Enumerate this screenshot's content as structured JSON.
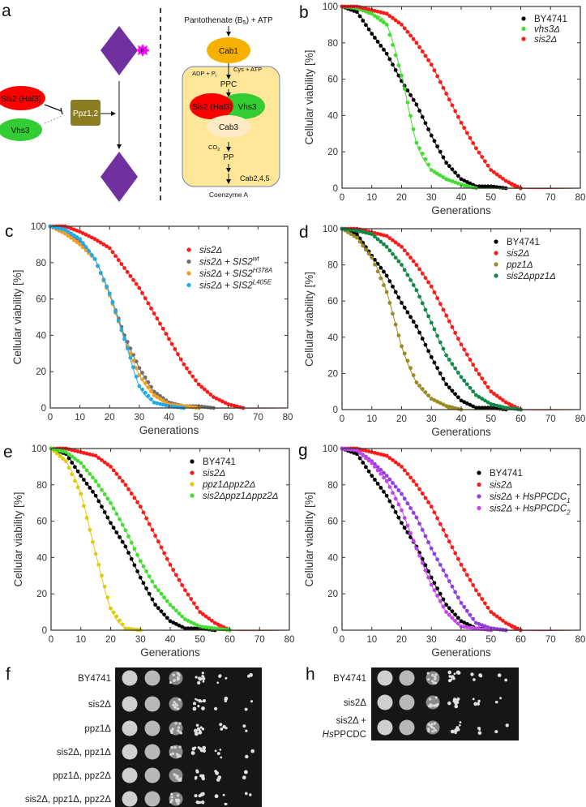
{
  "panel_labels": {
    "a": "a",
    "b": "b",
    "c": "c",
    "d": "d",
    "e": "e",
    "f": "f",
    "g": "g",
    "h": "h"
  },
  "diagram": {
    "left": {
      "sis2": "Sis2 (Hal3)",
      "vhs3": "Vhs3",
      "ppz": "Ppz1,2",
      "phospho": "P"
    },
    "right": {
      "pantothenate": "Pantothenate (B",
      "pantothenate_sub": "5",
      "pantothenate_end": ") + ATP",
      "cab1": "Cab1",
      "cys": "Cys + ATP",
      "adp": "ADP + P",
      "adp_sub": "i",
      "ppc": "PPC",
      "sis2": "Sis2 (Hal3)",
      "vhs3": "Vhs3",
      "cab3": "Cab3",
      "co2": "CO",
      "co2_sub": "2",
      "pp": "PP",
      "cab245": "Cab2,4,5",
      "coa": "Coenzyme A"
    },
    "colors": {
      "sis2": "#ff0000",
      "vhs3": "#33cc33",
      "ppz": "#8b7d22",
      "diamond": "#7030a0",
      "phospho": "#ff00ff",
      "cab1": "#f5b000",
      "box": "#ffe699",
      "cab3": "#fdebc6"
    }
  },
  "chart_data": [
    {
      "panel": "b",
      "type": "line",
      "xlabel": "Generations",
      "ylabel": "Cellular viability [%]",
      "xlim": [
        0,
        80
      ],
      "ylim": [
        0,
        100
      ],
      "xticks": [
        0,
        10,
        20,
        30,
        40,
        50,
        60,
        70,
        80
      ],
      "yticks": [
        0,
        20,
        40,
        60,
        80,
        100
      ],
      "legend": "top-right",
      "grid": false,
      "series": [
        {
          "name": "BY4741",
          "italic": false,
          "color": "#000000",
          "x": [
            0,
            5,
            10,
            15,
            20,
            25,
            30,
            35,
            40,
            45,
            50,
            55
          ],
          "y": [
            100,
            97,
            85,
            74,
            59,
            46,
            29,
            14,
            5,
            1,
            1,
            0
          ]
        },
        {
          "name": "vhs3Δ",
          "italic": true,
          "color": "#44dd33",
          "x": [
            0,
            5,
            10,
            15,
            20,
            25,
            30,
            35,
            40,
            45
          ],
          "y": [
            100,
            99,
            96,
            90,
            62,
            25,
            10,
            5,
            2,
            0
          ]
        },
        {
          "name": "sis2Δ",
          "italic": true,
          "color": "#ff1a1a",
          "x": [
            0,
            5,
            10,
            15,
            20,
            25,
            30,
            35,
            40,
            45,
            50,
            55,
            60
          ],
          "y": [
            100,
            100,
            98,
            96,
            90,
            80,
            68,
            52,
            36,
            22,
            10,
            4,
            0
          ]
        }
      ]
    },
    {
      "panel": "c",
      "type": "line",
      "xlabel": "Generations",
      "ylabel": "Cellular viability [%]",
      "xlim": [
        0,
        80
      ],
      "ylim": [
        0,
        100
      ],
      "xticks": [
        0,
        10,
        20,
        30,
        40,
        50,
        60,
        70,
        80
      ],
      "yticks": [
        0,
        20,
        40,
        60,
        80,
        100
      ],
      "legend": "top-right",
      "grid": false,
      "series": [
        {
          "name": "sis2Δ",
          "italic": true,
          "color": "#ff1a1a",
          "x": [
            0,
            5,
            10,
            15,
            20,
            25,
            30,
            35,
            40,
            45,
            50,
            55,
            60,
            65
          ],
          "y": [
            100,
            100,
            97,
            93,
            88,
            77,
            66,
            52,
            38,
            24,
            13,
            6,
            2,
            0
          ]
        },
        {
          "name": "sis2Δ + SIS2",
          "sup": "wt",
          "italic": true,
          "color": "#707070",
          "x": [
            0,
            5,
            10,
            15,
            20,
            25,
            30,
            35,
            40,
            45,
            50,
            55
          ],
          "y": [
            100,
            98,
            92,
            82,
            63,
            40,
            22,
            9,
            3,
            1,
            1,
            0
          ]
        },
        {
          "name": "sis2Δ + SIS2",
          "sup": "H378A",
          "italic": true,
          "color": "#f0a020",
          "x": [
            0,
            5,
            10,
            15,
            20,
            25,
            30,
            35,
            40,
            45,
            50
          ],
          "y": [
            100,
            96,
            90,
            82,
            62,
            38,
            18,
            7,
            2,
            1,
            0
          ]
        },
        {
          "name": "sis2Δ + SIS2",
          "sup": "L405E",
          "italic": true,
          "color": "#22aaee",
          "x": [
            0,
            5,
            10,
            15,
            20,
            25,
            30,
            35,
            40,
            45
          ],
          "y": [
            100,
            98,
            93,
            82,
            63,
            38,
            12,
            3,
            1,
            0
          ]
        }
      ]
    },
    {
      "panel": "d",
      "type": "line",
      "xlabel": "Generations",
      "ylabel": "Cellular viability [%]",
      "xlim": [
        0,
        80
      ],
      "ylim": [
        0,
        100
      ],
      "xticks": [
        0,
        10,
        20,
        30,
        40,
        50,
        60,
        70,
        80
      ],
      "yticks": [
        0,
        20,
        40,
        60,
        80,
        100
      ],
      "legend": "top-right",
      "grid": false,
      "series": [
        {
          "name": "BY4741",
          "italic": false,
          "color": "#000000",
          "x": [
            0,
            5,
            10,
            15,
            20,
            25,
            30,
            35,
            40,
            45,
            50,
            55
          ],
          "y": [
            100,
            97,
            85,
            74,
            59,
            46,
            29,
            14,
            5,
            1,
            1,
            0
          ]
        },
        {
          "name": "sis2Δ",
          "italic": true,
          "color": "#ff1a1a",
          "x": [
            0,
            5,
            10,
            15,
            20,
            25,
            30,
            35,
            40,
            45,
            50,
            55,
            60
          ],
          "y": [
            100,
            100,
            98,
            96,
            90,
            80,
            68,
            52,
            36,
            22,
            10,
            4,
            0
          ]
        },
        {
          "name": "ppz1Δ",
          "italic": true,
          "color": "#9a8a25",
          "x": [
            0,
            5,
            10,
            15,
            20,
            25,
            30,
            35,
            40
          ],
          "y": [
            100,
            95,
            84,
            65,
            35,
            15,
            6,
            2,
            0
          ]
        },
        {
          "name": "sis2Δppz1Δ",
          "italic": true,
          "color": "#12884a",
          "x": [
            0,
            5,
            10,
            15,
            20,
            25,
            30,
            35,
            40,
            45,
            50,
            55,
            60
          ],
          "y": [
            100,
            99,
            97,
            90,
            80,
            66,
            48,
            30,
            18,
            8,
            3,
            1,
            0
          ]
        }
      ]
    },
    {
      "panel": "e",
      "type": "line",
      "xlabel": "Generations",
      "ylabel": "Cellular viability [%]",
      "xlim": [
        0,
        80
      ],
      "ylim": [
        0,
        100
      ],
      "xticks": [
        0,
        10,
        20,
        30,
        40,
        50,
        60,
        70,
        80
      ],
      "yticks": [
        0,
        20,
        40,
        60,
        80,
        100
      ],
      "legend": "top-right",
      "grid": false,
      "series": [
        {
          "name": "BY4741",
          "italic": false,
          "color": "#000000",
          "x": [
            0,
            5,
            10,
            15,
            20,
            25,
            30,
            35,
            40,
            45,
            50,
            55
          ],
          "y": [
            100,
            97,
            85,
            74,
            59,
            46,
            29,
            14,
            5,
            1,
            1,
            0
          ]
        },
        {
          "name": "sis2Δ",
          "italic": true,
          "color": "#ff1a1a",
          "x": [
            0,
            5,
            10,
            15,
            20,
            25,
            30,
            35,
            40,
            45,
            50,
            55,
            60
          ],
          "y": [
            100,
            100,
            98,
            96,
            90,
            80,
            68,
            52,
            36,
            22,
            10,
            4,
            0
          ]
        },
        {
          "name": "ppz1Δppz2Δ",
          "italic": true,
          "color": "#ddcc10",
          "x": [
            0,
            5,
            10,
            15,
            20,
            25,
            30
          ],
          "y": [
            100,
            93,
            75,
            42,
            12,
            1,
            0
          ]
        },
        {
          "name": "sis2Δppz1Δppz2Δ",
          "italic": true,
          "color": "#44dd33",
          "x": [
            0,
            5,
            10,
            15,
            20,
            25,
            30,
            35,
            40,
            45,
            50,
            55,
            60
          ],
          "y": [
            100,
            98,
            92,
            82,
            70,
            55,
            38,
            24,
            14,
            6,
            2,
            1,
            0
          ]
        }
      ]
    },
    {
      "panel": "g",
      "type": "line",
      "xlabel": "Generations",
      "ylabel": "Cellular viability [%]",
      "xlim": [
        0,
        80
      ],
      "ylim": [
        0,
        100
      ],
      "xticks": [
        0,
        10,
        20,
        30,
        40,
        50,
        60,
        70,
        80
      ],
      "yticks": [
        0,
        20,
        40,
        60,
        80,
        100
      ],
      "legend": "top-right",
      "grid": false,
      "series": [
        {
          "name": "BY4741",
          "italic": false,
          "color": "#000000",
          "x": [
            0,
            5,
            10,
            15,
            20,
            25,
            30,
            35,
            40,
            45,
            50,
            55
          ],
          "y": [
            100,
            97,
            85,
            74,
            59,
            46,
            29,
            14,
            5,
            1,
            1,
            0
          ]
        },
        {
          "name": "sis2Δ",
          "italic": true,
          "color": "#ff1a1a",
          "x": [
            0,
            5,
            10,
            15,
            20,
            25,
            30,
            35,
            40,
            45,
            50,
            55,
            60
          ],
          "y": [
            100,
            100,
            98,
            96,
            90,
            80,
            68,
            52,
            36,
            22,
            10,
            4,
            0
          ]
        },
        {
          "name": "sis2Δ + HsPPCDC",
          "sub": "1",
          "italic": true,
          "color": "#9040e0",
          "x": [
            0,
            5,
            10,
            15,
            20,
            25,
            30,
            35,
            40,
            45,
            50,
            55
          ],
          "y": [
            100,
            99,
            93,
            85,
            75,
            62,
            45,
            30,
            15,
            4,
            1,
            0
          ]
        },
        {
          "name": "sis2Δ + HsPPCDC",
          "sub": "2",
          "italic": true,
          "color": "#c445ec",
          "x": [
            0,
            5,
            10,
            15,
            20,
            25,
            30,
            35,
            40,
            45,
            50
          ],
          "y": [
            100,
            99,
            92,
            82,
            66,
            45,
            25,
            10,
            2,
            1,
            0
          ]
        }
      ]
    }
  ],
  "gels": {
    "f": {
      "rows": [
        "BY4741",
        "sis2Δ",
        "ppz1Δ",
        "sis2Δ, ppz1Δ",
        "ppz1Δ, ppz2Δ",
        "sis2Δ, ppz1Δ, ppz2Δ"
      ]
    },
    "h": {
      "rows": [
        "BY4741",
        "sis2Δ",
        "sis2Δ +"
      ],
      "last_row_line2_italic": "Hs",
      "last_row_line2": "PPCDC"
    }
  }
}
